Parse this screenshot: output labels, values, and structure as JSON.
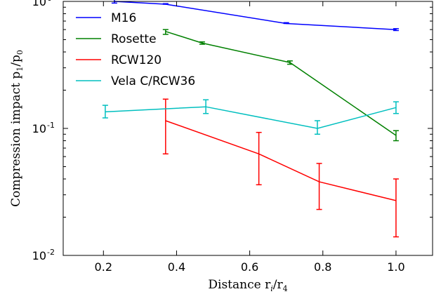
{
  "chart_data": {
    "type": "line",
    "xlabel": "Distance r",
    "xlabel_sub": "i",
    "xlabel_tail": "/r",
    "xlabel_sub2": "4",
    "ylabel": "Compression impact p",
    "ylabel_sub": "1",
    "ylabel_tail": "/p",
    "ylabel_sub2": "0",
    "xlim": [
      0.09,
      1.1
    ],
    "ylim": [
      0.01,
      1.0
    ],
    "yscale": "log",
    "xticks": [
      0.2,
      0.4,
      0.6,
      0.8,
      1.0
    ],
    "xtick_labels": [
      "0.2",
      "0.4",
      "0.6",
      "0.8",
      "1.0"
    ],
    "yticks": [
      0.01,
      0.1,
      1.0
    ],
    "ytick_labels": [
      {
        "base": "10",
        "exp": "-2"
      },
      {
        "base": "10",
        "exp": "-1"
      },
      {
        "base": "10",
        "exp": "0"
      }
    ],
    "grid": false,
    "legend_position": "top-left",
    "series": [
      {
        "name": "M16",
        "color": "#0000ff",
        "x": [
          0.23,
          0.37,
          0.7,
          1.0
        ],
        "y": [
          1.0,
          0.95,
          0.67,
          0.6
        ],
        "yerr_low": [
          0.97,
          0.95,
          0.67,
          0.59
        ],
        "yerr_high": [
          1.04,
          0.96,
          0.68,
          0.61
        ]
      },
      {
        "name": "Rosette",
        "color": "#008000",
        "x": [
          0.37,
          0.47,
          0.71,
          1.0
        ],
        "y": [
          0.58,
          0.47,
          0.33,
          0.088
        ],
        "yerr_low": [
          0.55,
          0.46,
          0.32,
          0.08
        ],
        "yerr_high": [
          0.6,
          0.48,
          0.34,
          0.096
        ]
      },
      {
        "name": "RCW120",
        "color": "#ff0000",
        "x": [
          0.37,
          0.625,
          0.79,
          1.0
        ],
        "y": [
          0.115,
          0.063,
          0.038,
          0.027
        ],
        "yerr_low": [
          0.063,
          0.036,
          0.023,
          0.014
        ],
        "yerr_high": [
          0.17,
          0.093,
          0.053,
          0.04
        ]
      },
      {
        "name": "Vela C/RCW36",
        "color": "#00bfbf",
        "x": [
          0.205,
          0.48,
          0.785,
          1.0
        ],
        "y": [
          0.135,
          0.148,
          0.1,
          0.146
        ],
        "yerr_low": [
          0.121,
          0.131,
          0.09,
          0.131
        ],
        "yerr_high": [
          0.152,
          0.168,
          0.115,
          0.162
        ]
      }
    ]
  }
}
